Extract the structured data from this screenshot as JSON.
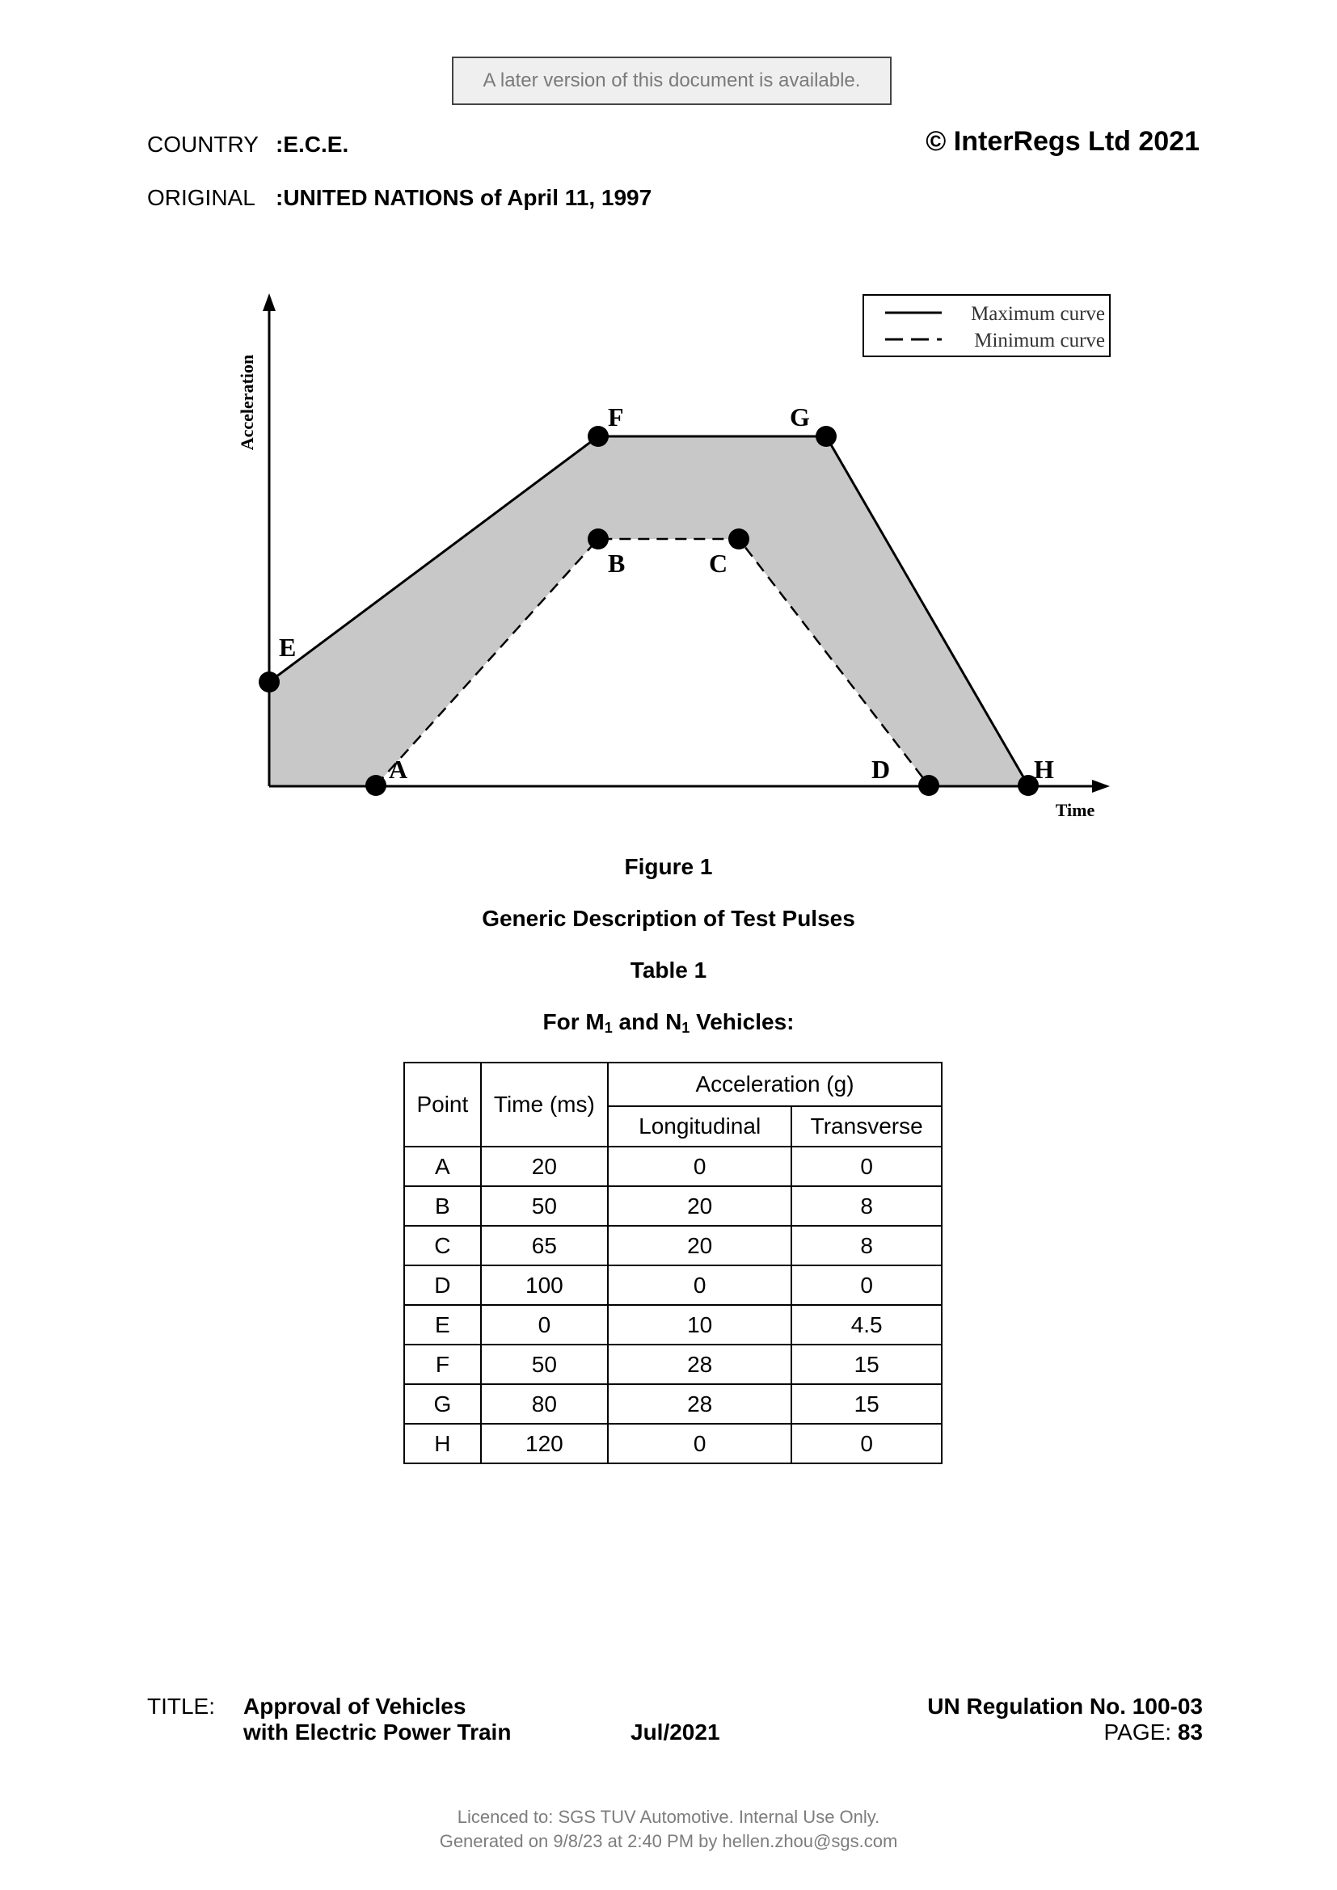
{
  "banner": "A later version of this document is available.",
  "header": {
    "country_label": "COUNTRY",
    "country_value": ":E.C.E.",
    "original_label": "ORIGINAL",
    "original_value": ":UNITED NATIONS of April 11, 1997",
    "copyright": "© InterRegs Ltd 2021"
  },
  "diagram": {
    "y_axis_label": "Acceleration",
    "x_axis_label": "Time",
    "legend": [
      "Maximum curve",
      "Minimum curve"
    ],
    "point_labels": [
      "A",
      "B",
      "C",
      "D",
      "E",
      "F",
      "G",
      "H"
    ],
    "fill_color": "#c8c8c8"
  },
  "figure_caption": "Figure 1",
  "figure_title": "Generic Description of Test Pulses",
  "table_caption": "Table 1",
  "table_subtitle": {
    "pre": "For M",
    "sub1": "1",
    "mid": " and N",
    "sub2": "1",
    "post": " Vehicles:"
  },
  "table": {
    "headers": {
      "point": "Point",
      "time": "Time (ms)",
      "accel": "Acceleration (g)",
      "longitudinal": "Longitudinal",
      "transverse": "Transverse"
    },
    "rows": [
      [
        "A",
        "20",
        "0",
        "0"
      ],
      [
        "B",
        "50",
        "20",
        "8"
      ],
      [
        "C",
        "65",
        "20",
        "8"
      ],
      [
        "D",
        "100",
        "0",
        "0"
      ],
      [
        "E",
        "0",
        "10",
        "4.5"
      ],
      [
        "F",
        "50",
        "28",
        "15"
      ],
      [
        "G",
        "80",
        "28",
        "15"
      ],
      [
        "H",
        "120",
        "0",
        "0"
      ]
    ]
  },
  "footer": {
    "title_label": "TITLE:",
    "title_line1": "Approval of Vehicles",
    "title_line2": "with Electric Power Train",
    "date": "Jul/2021",
    "regulation": "UN Regulation No. 100-03",
    "page_label": "PAGE:",
    "page_number": "83"
  },
  "licence": {
    "line1": "Licenced to: SGS TUV Automotive. Internal Use Only.",
    "line2": "Generated on 9/8/23 at 2:40 PM by hellen.zhou@sgs.com"
  }
}
